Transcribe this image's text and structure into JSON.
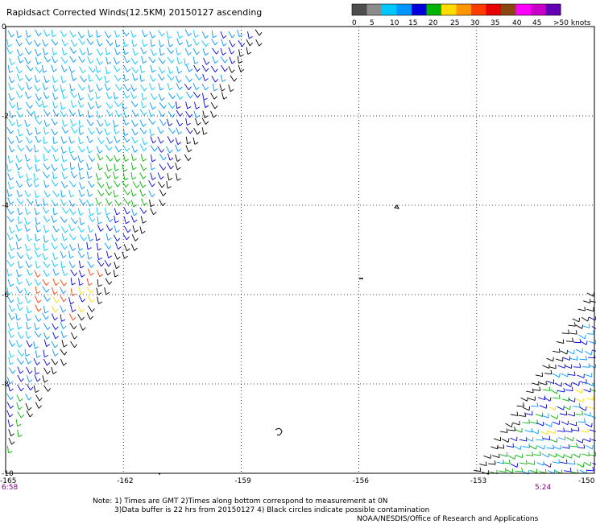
{
  "title": "Rapidsact Corrected Winds(12.5KM) 20150127 ascending",
  "colorbar": {
    "colors": [
      "#4d4d4d",
      "#8c8c8c",
      "#00c8ff",
      "#0096ff",
      "#0000dc",
      "#00b400",
      "#ffdc00",
      "#ff9600",
      "#ff3c00",
      "#e60000",
      "#8b4513",
      "#ff00ff",
      "#c800c8",
      "#6400b4"
    ],
    "labels": [
      "0",
      "5",
      "10",
      "15",
      "20",
      "25",
      "30",
      "35",
      "40",
      "45",
      ">50 knots"
    ]
  },
  "axes": {
    "lat_ticks": [
      "0",
      "-2",
      "-4",
      "-6",
      "-8",
      "-10"
    ],
    "lon_ticks": [
      "-165",
      "-162",
      "-159",
      "-156",
      "-153",
      "-150"
    ],
    "lon_range": [
      -165,
      -150
    ],
    "lat_range": [
      -10,
      0
    ],
    "grid": true
  },
  "swath_times": {
    "left": "6:58",
    "right": "5:24"
  },
  "notes": {
    "line1": "Note: 1) Times are GMT 2)Times along bottom correspond to measurement at 0N",
    "line2": "3)Data buffer is 22 hrs from 20150127 4) Black circles indicate possible contamination",
    "line3": "NOAA/NESDIS/Office of Research and Applications"
  }
}
